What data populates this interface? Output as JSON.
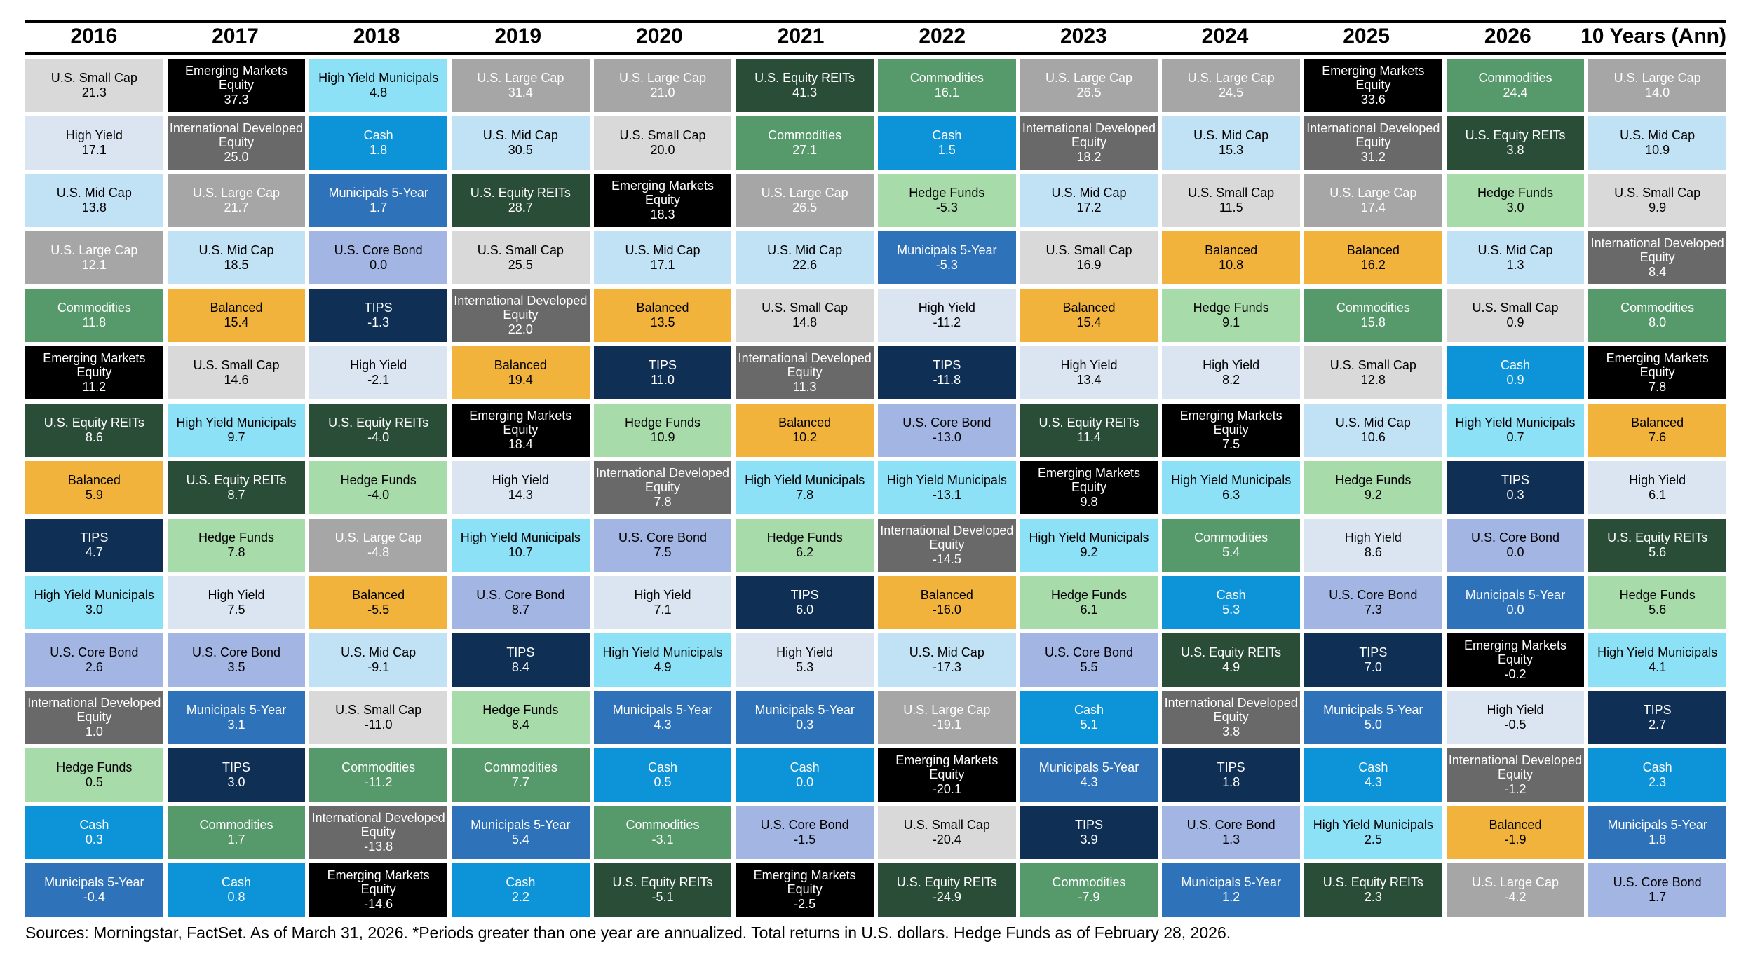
{
  "footer": {
    "text": "Sources: Morningstar, FactSet. As of March 31, 2026. *Periods greater than one year are annualized. Total returns in U.S. dollars. Hedge Funds as of February 28, 2026."
  },
  "chart_data": {
    "type": "table",
    "subtype": "asset-class-returns-quilt",
    "title": "",
    "legend_position": "none",
    "grid": false,
    "column_headers": [
      "2016",
      "2017",
      "2018",
      "2019",
      "2020",
      "2021",
      "2022",
      "2023",
      "2024",
      "2025",
      "2026",
      "10 Years (Ann)"
    ],
    "asset_classes": {
      "us_small_cap": {
        "label": "U.S. Small Cap",
        "bg": "#d9d9d9",
        "fg": "#000000"
      },
      "high_yield": {
        "label": "High Yield",
        "bg": "#dbe5f2",
        "fg": "#000000"
      },
      "us_mid_cap": {
        "label": "U.S. Mid Cap",
        "bg": "#c1e1f5",
        "fg": "#000000"
      },
      "us_large_cap": {
        "label": "U.S. Large Cap",
        "bg": "#a6a6a6",
        "fg": "#ffffff"
      },
      "commodities": {
        "label": "Commodities",
        "bg": "#56996b",
        "fg": "#ffffff"
      },
      "em_equity": {
        "label": "Emerging Markets Equity",
        "bg": "#000000",
        "fg": "#ffffff"
      },
      "us_equity_reits": {
        "label": "U.S. Equity REITs",
        "bg": "#2a4d38",
        "fg": "#ffffff"
      },
      "balanced": {
        "label": "Balanced",
        "bg": "#f2b33c",
        "fg": "#000000"
      },
      "tips": {
        "label": "TIPS",
        "bg": "#0f2f55",
        "fg": "#ffffff"
      },
      "hy_municipals": {
        "label": "High Yield Municipals",
        "bg": "#8ce1f6",
        "fg": "#000000"
      },
      "us_core_bond": {
        "label": "U.S. Core Bond",
        "bg": "#a2b5e3",
        "fg": "#000000"
      },
      "intl_dev_equity": {
        "label": "International Developed Equity",
        "bg": "#696969",
        "fg": "#ffffff"
      },
      "hedge_funds": {
        "label": "Hedge Funds",
        "bg": "#a7dbaa",
        "fg": "#000000"
      },
      "cash": {
        "label": "Cash",
        "bg": "#0d94d8",
        "fg": "#ffffff"
      },
      "municipals_5y": {
        "label": "Municipals 5-Year",
        "bg": "#2e72ba",
        "fg": "#ffffff"
      }
    },
    "columns": [
      {
        "label": "2016",
        "cells": [
          [
            "us_small_cap",
            "21.3"
          ],
          [
            "high_yield",
            "17.1"
          ],
          [
            "us_mid_cap",
            "13.8"
          ],
          [
            "us_large_cap",
            "12.1"
          ],
          [
            "commodities",
            "11.8"
          ],
          [
            "em_equity",
            "11.2"
          ],
          [
            "us_equity_reits",
            "8.6"
          ],
          [
            "balanced",
            "5.9"
          ],
          [
            "tips",
            "4.7"
          ],
          [
            "hy_municipals",
            "3.0"
          ],
          [
            "us_core_bond",
            "2.6"
          ],
          [
            "intl_dev_equity",
            "1.0"
          ],
          [
            "hedge_funds",
            "0.5"
          ],
          [
            "cash",
            "0.3"
          ],
          [
            "municipals_5y",
            "-0.4"
          ]
        ]
      },
      {
        "label": "2017",
        "cells": [
          [
            "em_equity",
            "37.3"
          ],
          [
            "intl_dev_equity",
            "25.0"
          ],
          [
            "us_large_cap",
            "21.7"
          ],
          [
            "us_mid_cap",
            "18.5"
          ],
          [
            "balanced",
            "15.4"
          ],
          [
            "us_small_cap",
            "14.6"
          ],
          [
            "hy_municipals",
            "9.7"
          ],
          [
            "us_equity_reits",
            "8.7"
          ],
          [
            "hedge_funds",
            "7.8"
          ],
          [
            "high_yield",
            "7.5"
          ],
          [
            "us_core_bond",
            "3.5"
          ],
          [
            "municipals_5y",
            "3.1"
          ],
          [
            "tips",
            "3.0"
          ],
          [
            "commodities",
            "1.7"
          ],
          [
            "cash",
            "0.8"
          ]
        ]
      },
      {
        "label": "2018",
        "cells": [
          [
            "hy_municipals",
            "4.8"
          ],
          [
            "cash",
            "1.8"
          ],
          [
            "municipals_5y",
            "1.7"
          ],
          [
            "us_core_bond",
            "0.0"
          ],
          [
            "tips",
            "-1.3"
          ],
          [
            "high_yield",
            "-2.1"
          ],
          [
            "us_equity_reits",
            "-4.0"
          ],
          [
            "hedge_funds",
            "-4.0"
          ],
          [
            "us_large_cap",
            "-4.8"
          ],
          [
            "balanced",
            "-5.5"
          ],
          [
            "us_mid_cap",
            "-9.1"
          ],
          [
            "us_small_cap",
            "-11.0"
          ],
          [
            "commodities",
            "-11.2"
          ],
          [
            "intl_dev_equity",
            "-13.8"
          ],
          [
            "em_equity",
            "-14.6"
          ]
        ]
      },
      {
        "label": "2019",
        "cells": [
          [
            "us_large_cap",
            "31.4"
          ],
          [
            "us_mid_cap",
            "30.5"
          ],
          [
            "us_equity_reits",
            "28.7"
          ],
          [
            "us_small_cap",
            "25.5"
          ],
          [
            "intl_dev_equity",
            "22.0"
          ],
          [
            "balanced",
            "19.4"
          ],
          [
            "em_equity",
            "18.4"
          ],
          [
            "high_yield",
            "14.3"
          ],
          [
            "hy_municipals",
            "10.7"
          ],
          [
            "us_core_bond",
            "8.7"
          ],
          [
            "tips",
            "8.4"
          ],
          [
            "hedge_funds",
            "8.4"
          ],
          [
            "commodities",
            "7.7"
          ],
          [
            "municipals_5y",
            "5.4"
          ],
          [
            "cash",
            "2.2"
          ]
        ]
      },
      {
        "label": "2020",
        "cells": [
          [
            "us_large_cap",
            "21.0"
          ],
          [
            "us_small_cap",
            "20.0"
          ],
          [
            "em_equity",
            "18.3"
          ],
          [
            "us_mid_cap",
            "17.1"
          ],
          [
            "balanced",
            "13.5"
          ],
          [
            "tips",
            "11.0"
          ],
          [
            "hedge_funds",
            "10.9"
          ],
          [
            "intl_dev_equity",
            "7.8"
          ],
          [
            "us_core_bond",
            "7.5"
          ],
          [
            "high_yield",
            "7.1"
          ],
          [
            "hy_municipals",
            "4.9"
          ],
          [
            "municipals_5y",
            "4.3"
          ],
          [
            "cash",
            "0.5"
          ],
          [
            "commodities",
            "-3.1"
          ],
          [
            "us_equity_reits",
            "-5.1"
          ]
        ]
      },
      {
        "label": "2021",
        "cells": [
          [
            "us_equity_reits",
            "41.3"
          ],
          [
            "commodities",
            "27.1"
          ],
          [
            "us_large_cap",
            "26.5"
          ],
          [
            "us_mid_cap",
            "22.6"
          ],
          [
            "us_small_cap",
            "14.8"
          ],
          [
            "intl_dev_equity",
            "11.3"
          ],
          [
            "balanced",
            "10.2"
          ],
          [
            "hy_municipals",
            "7.8"
          ],
          [
            "hedge_funds",
            "6.2"
          ],
          [
            "tips",
            "6.0"
          ],
          [
            "high_yield",
            "5.3"
          ],
          [
            "municipals_5y",
            "0.3"
          ],
          [
            "cash",
            "0.0"
          ],
          [
            "us_core_bond",
            "-1.5"
          ],
          [
            "em_equity",
            "-2.5"
          ]
        ]
      },
      {
        "label": "2022",
        "cells": [
          [
            "commodities",
            "16.1"
          ],
          [
            "cash",
            "1.5"
          ],
          [
            "hedge_funds",
            "-5.3"
          ],
          [
            "municipals_5y",
            "-5.3"
          ],
          [
            "high_yield",
            "-11.2"
          ],
          [
            "tips",
            "-11.8"
          ],
          [
            "us_core_bond",
            "-13.0"
          ],
          [
            "hy_municipals",
            "-13.1"
          ],
          [
            "intl_dev_equity",
            "-14.5"
          ],
          [
            "balanced",
            "-16.0"
          ],
          [
            "us_mid_cap",
            "-17.3"
          ],
          [
            "us_large_cap",
            "-19.1"
          ],
          [
            "em_equity",
            "-20.1"
          ],
          [
            "us_small_cap",
            "-20.4"
          ],
          [
            "us_equity_reits",
            "-24.9"
          ]
        ]
      },
      {
        "label": "2023",
        "cells": [
          [
            "us_large_cap",
            "26.5"
          ],
          [
            "intl_dev_equity",
            "18.2"
          ],
          [
            "us_mid_cap",
            "17.2"
          ],
          [
            "us_small_cap",
            "16.9"
          ],
          [
            "balanced",
            "15.4"
          ],
          [
            "high_yield",
            "13.4"
          ],
          [
            "us_equity_reits",
            "11.4"
          ],
          [
            "em_equity",
            "9.8"
          ],
          [
            "hy_municipals",
            "9.2"
          ],
          [
            "hedge_funds",
            "6.1"
          ],
          [
            "us_core_bond",
            "5.5"
          ],
          [
            "cash",
            "5.1"
          ],
          [
            "municipals_5y",
            "4.3"
          ],
          [
            "tips",
            "3.9"
          ],
          [
            "commodities",
            "-7.9"
          ]
        ]
      },
      {
        "label": "2024",
        "cells": [
          [
            "us_large_cap",
            "24.5"
          ],
          [
            "us_mid_cap",
            "15.3"
          ],
          [
            "us_small_cap",
            "11.5"
          ],
          [
            "balanced",
            "10.8"
          ],
          [
            "hedge_funds",
            "9.1"
          ],
          [
            "high_yield",
            "8.2"
          ],
          [
            "em_equity",
            "7.5"
          ],
          [
            "hy_municipals",
            "6.3"
          ],
          [
            "commodities",
            "5.4"
          ],
          [
            "cash",
            "5.3"
          ],
          [
            "us_equity_reits",
            "4.9"
          ],
          [
            "intl_dev_equity",
            "3.8"
          ],
          [
            "tips",
            "1.8"
          ],
          [
            "us_core_bond",
            "1.3"
          ],
          [
            "municipals_5y",
            "1.2"
          ]
        ]
      },
      {
        "label": "2025",
        "cells": [
          [
            "em_equity",
            "33.6"
          ],
          [
            "intl_dev_equity",
            "31.2"
          ],
          [
            "us_large_cap",
            "17.4"
          ],
          [
            "balanced",
            "16.2"
          ],
          [
            "commodities",
            "15.8"
          ],
          [
            "us_small_cap",
            "12.8"
          ],
          [
            "us_mid_cap",
            "10.6"
          ],
          [
            "hedge_funds",
            "9.2"
          ],
          [
            "high_yield",
            "8.6"
          ],
          [
            "us_core_bond",
            "7.3"
          ],
          [
            "tips",
            "7.0"
          ],
          [
            "municipals_5y",
            "5.0"
          ],
          [
            "cash",
            "4.3"
          ],
          [
            "hy_municipals",
            "2.5"
          ],
          [
            "us_equity_reits",
            "2.3"
          ]
        ]
      },
      {
        "label": "2026",
        "cells": [
          [
            "commodities",
            "24.4"
          ],
          [
            "us_equity_reits",
            "3.8"
          ],
          [
            "hedge_funds",
            "3.0"
          ],
          [
            "us_mid_cap",
            "1.3"
          ],
          [
            "us_small_cap",
            "0.9"
          ],
          [
            "cash",
            "0.9"
          ],
          [
            "hy_municipals",
            "0.7"
          ],
          [
            "tips",
            "0.3"
          ],
          [
            "us_core_bond",
            "0.0"
          ],
          [
            "municipals_5y",
            "0.0"
          ],
          [
            "em_equity",
            "-0.2"
          ],
          [
            "high_yield",
            "-0.5"
          ],
          [
            "intl_dev_equity",
            "-1.2"
          ],
          [
            "balanced",
            "-1.9"
          ],
          [
            "us_large_cap",
            "-4.2"
          ]
        ]
      },
      {
        "label": "10 Years (Ann)",
        "cells": [
          [
            "us_large_cap",
            "14.0"
          ],
          [
            "us_mid_cap",
            "10.9"
          ],
          [
            "us_small_cap",
            "9.9"
          ],
          [
            "intl_dev_equity",
            "8.4"
          ],
          [
            "commodities",
            "8.0"
          ],
          [
            "em_equity",
            "7.8"
          ],
          [
            "balanced",
            "7.6"
          ],
          [
            "high_yield",
            "6.1"
          ],
          [
            "us_equity_reits",
            "5.6"
          ],
          [
            "hedge_funds",
            "5.6"
          ],
          [
            "hy_municipals",
            "4.1"
          ],
          [
            "tips",
            "2.7"
          ],
          [
            "cash",
            "2.3"
          ],
          [
            "municipals_5y",
            "1.8"
          ],
          [
            "us_core_bond",
            "1.7"
          ]
        ]
      }
    ]
  }
}
